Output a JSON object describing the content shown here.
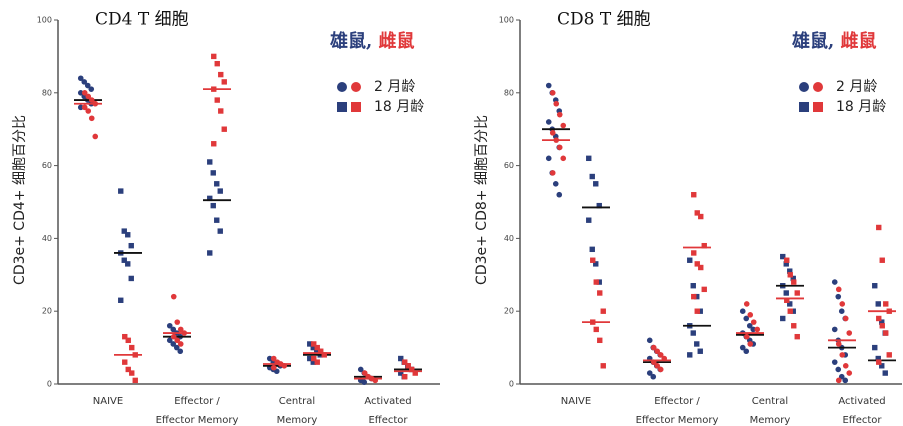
{
  "chart_data": [
    {
      "type": "dot",
      "title": "CD4 T 细胞",
      "y_label": "CD3e+ CD4+ 细胞百分比",
      "categories": [
        "NAIVE",
        "Effector /\nEffector Memory",
        "Central\nMemory",
        "Activated\nEffector"
      ],
      "ylim": [
        0,
        100
      ],
      "yticks": [
        0,
        20,
        40,
        60,
        80,
        100
      ],
      "sexes": [
        {
          "name": "雄鼠",
          "color": "#2b3f7c",
          "mean_color": "#111111"
        },
        {
          "name": "雌鼠",
          "color": "#e0383a",
          "mean_color": "#e0383a"
        }
      ],
      "sex_separator": ", ",
      "ages": [
        {
          "name": "2 月龄",
          "marker": "circle"
        },
        {
          "name": "18 月龄",
          "marker": "square"
        }
      ],
      "groups": [
        {
          "sex": 0,
          "age": 0,
          "values": [
            [
              84,
              83,
              82,
              81,
              80,
              79,
              78,
              77,
              76
            ],
            [
              16,
              15,
              14,
              13,
              12,
              11,
              10,
              9
            ],
            [
              7,
              6,
              5.5,
              5,
              4.5,
              4,
              3.5
            ],
            [
              4,
              3,
              2,
              1.5,
              1,
              0.5
            ]
          ],
          "means": [
            78,
            13,
            5,
            2
          ]
        },
        {
          "sex": 1,
          "age": 0,
          "values": [
            [
              80,
              79,
              78,
              77,
              76,
              75,
              73,
              68
            ],
            [
              24,
              17,
              15,
              14,
              13,
              12,
              11
            ],
            [
              7,
              6,
              5.5,
              5,
              4.5
            ],
            [
              3,
              2,
              1.5,
              1
            ]
          ],
          "means": [
            77,
            14,
            5.5,
            1.5
          ]
        },
        {
          "sex": 0,
          "age": 1,
          "values": [
            [
              53,
              42,
              41,
              38,
              36,
              34,
              33,
              29,
              23
            ],
            [
              61,
              58,
              55,
              53,
              51,
              49,
              45,
              42,
              36
            ],
            [
              11,
              10,
              9,
              8,
              7,
              6
            ],
            [
              7,
              6,
              5,
              4,
              3,
              2
            ]
          ],
          "means": [
            36,
            50.5,
            8,
            4
          ]
        },
        {
          "sex": 1,
          "age": 1,
          "values": [
            [
              13,
              12,
              10,
              8,
              6,
              4,
              3,
              1
            ],
            [
              90,
              88,
              85,
              83,
              81,
              78,
              75,
              70,
              66
            ],
            [
              11,
              10,
              9,
              8,
              7,
              6
            ],
            [
              6,
              5,
              4,
              3,
              2
            ]
          ],
          "means": [
            8,
            81,
            8.5,
            3.5
          ]
        }
      ]
    },
    {
      "type": "dot",
      "title": "CD8 T 细胞",
      "y_label": "CD3e+ CD8+ 细胞百分比",
      "categories": [
        "NAIVE",
        "Effector /\nEffector Memory",
        "Central\nMemory",
        "Activated\nEffector"
      ],
      "ylim": [
        0,
        100
      ],
      "yticks": [
        0,
        20,
        40,
        60,
        80,
        100
      ],
      "sexes": [
        {
          "name": "雄鼠",
          "color": "#2b3f7c",
          "mean_color": "#111111"
        },
        {
          "name": "雌鼠",
          "color": "#e0383a",
          "mean_color": "#e0383a"
        }
      ],
      "sex_separator": ", ",
      "ages": [
        {
          "name": "2 月龄",
          "marker": "circle"
        },
        {
          "name": "18 月龄",
          "marker": "square"
        }
      ],
      "groups": [
        {
          "sex": 0,
          "age": 0,
          "values": [
            [
              82,
              80,
              78,
              75,
              72,
              70,
              68,
              65,
              62,
              58,
              55,
              52
            ],
            [
              12,
              10,
              9,
              8,
              7,
              6,
              5,
              4,
              3,
              2
            ],
            [
              20,
              18,
              16,
              15,
              14,
              13,
              12,
              11,
              10,
              9
            ],
            [
              28,
              24,
              20,
              18,
              15,
              12,
              10,
              8,
              6,
              4,
              2,
              1
            ]
          ],
          "means": [
            70,
            6,
            13.5,
            10
          ]
        },
        {
          "sex": 1,
          "age": 0,
          "values": [
            [
              80,
              77,
              74,
              71,
              69,
              67,
              65,
              62,
              58
            ],
            [
              10,
              9,
              8,
              7,
              6,
              5,
              4
            ],
            [
              22,
              19,
              17,
              15,
              13,
              11
            ],
            [
              26,
              22,
              18,
              14,
              11,
              8,
              5,
              3,
              1
            ]
          ],
          "means": [
            67,
            6.5,
            14,
            12
          ]
        },
        {
          "sex": 0,
          "age": 1,
          "values": [
            [
              62,
              57,
              55,
              49,
              45,
              37,
              33,
              28
            ],
            [
              34,
              27,
              24,
              20,
              16,
              14,
              11,
              9,
              8
            ],
            [
              35,
              33,
              31,
              29,
              27,
              25,
              22,
              20,
              18
            ],
            [
              27,
              22,
              17,
              14,
              10,
              7,
              5,
              3
            ]
          ],
          "means": [
            48.5,
            16,
            27,
            6.5
          ]
        },
        {
          "sex": 1,
          "age": 1,
          "values": [
            [
              34,
              28,
              25,
              20,
              17,
              15,
              12,
              5
            ],
            [
              52,
              47,
              46,
              38,
              36,
              33,
              32,
              26,
              24,
              20
            ],
            [
              34,
              30,
              28,
              25,
              23,
              20,
              16,
              13
            ],
            [
              43,
              34,
              22,
              20,
              18,
              16,
              14,
              8,
              6
            ]
          ],
          "means": [
            17,
            37.5,
            23.5,
            20
          ]
        }
      ]
    }
  ]
}
